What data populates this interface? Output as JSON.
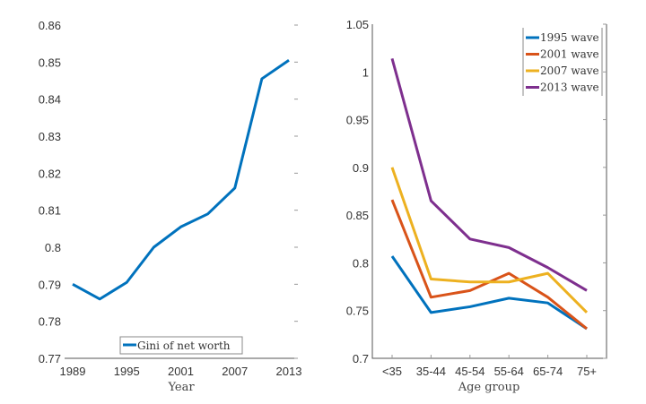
{
  "chart_data": [
    {
      "type": "line",
      "xlabel": "Year",
      "ylabel": "",
      "xlim": [
        1989,
        2013
      ],
      "ylim": [
        0.77,
        0.86
      ],
      "xticks": [
        1989,
        1995,
        2001,
        2007,
        2013
      ],
      "yticks": [
        0.77,
        0.78,
        0.79,
        0.8,
        0.81,
        0.82,
        0.83,
        0.84,
        0.85,
        0.86
      ],
      "x": [
        1989,
        1992,
        1995,
        1998,
        2001,
        2004,
        2007,
        2010,
        2013
      ],
      "series": [
        {
          "name": "Gini of net worth",
          "color": "#0072BD",
          "values": [
            0.79,
            0.786,
            0.7905,
            0.8,
            0.8055,
            0.809,
            0.816,
            0.8455,
            0.8505
          ]
        }
      ],
      "legend": "bottom-center",
      "grid": false
    },
    {
      "type": "line",
      "xlabel": "Age group",
      "ylabel": "",
      "ylim": [
        0.7,
        1.05
      ],
      "yticks": [
        0.7,
        0.75,
        0.8,
        0.85,
        0.9,
        0.95,
        1,
        1.05
      ],
      "categories": [
        "<35",
        "35-44",
        "45-54",
        "55-64",
        "65-74",
        "75+"
      ],
      "series": [
        {
          "name": "1995 wave",
          "color": "#0072BD",
          "values": [
            0.807,
            0.748,
            0.754,
            0.763,
            0.758,
            0.731
          ]
        },
        {
          "name": "2001 wave",
          "color": "#D95319",
          "values": [
            0.866,
            0.764,
            0.771,
            0.789,
            0.764,
            0.731
          ]
        },
        {
          "name": "2007 wave",
          "color": "#EDB120",
          "values": [
            0.9,
            0.783,
            0.78,
            0.78,
            0.789,
            0.748
          ]
        },
        {
          "name": "2013 wave",
          "color": "#7E2F8E",
          "values": [
            1.014,
            0.865,
            0.825,
            0.816,
            0.795,
            0.771
          ]
        }
      ],
      "legend": "top-right",
      "grid": false
    }
  ]
}
